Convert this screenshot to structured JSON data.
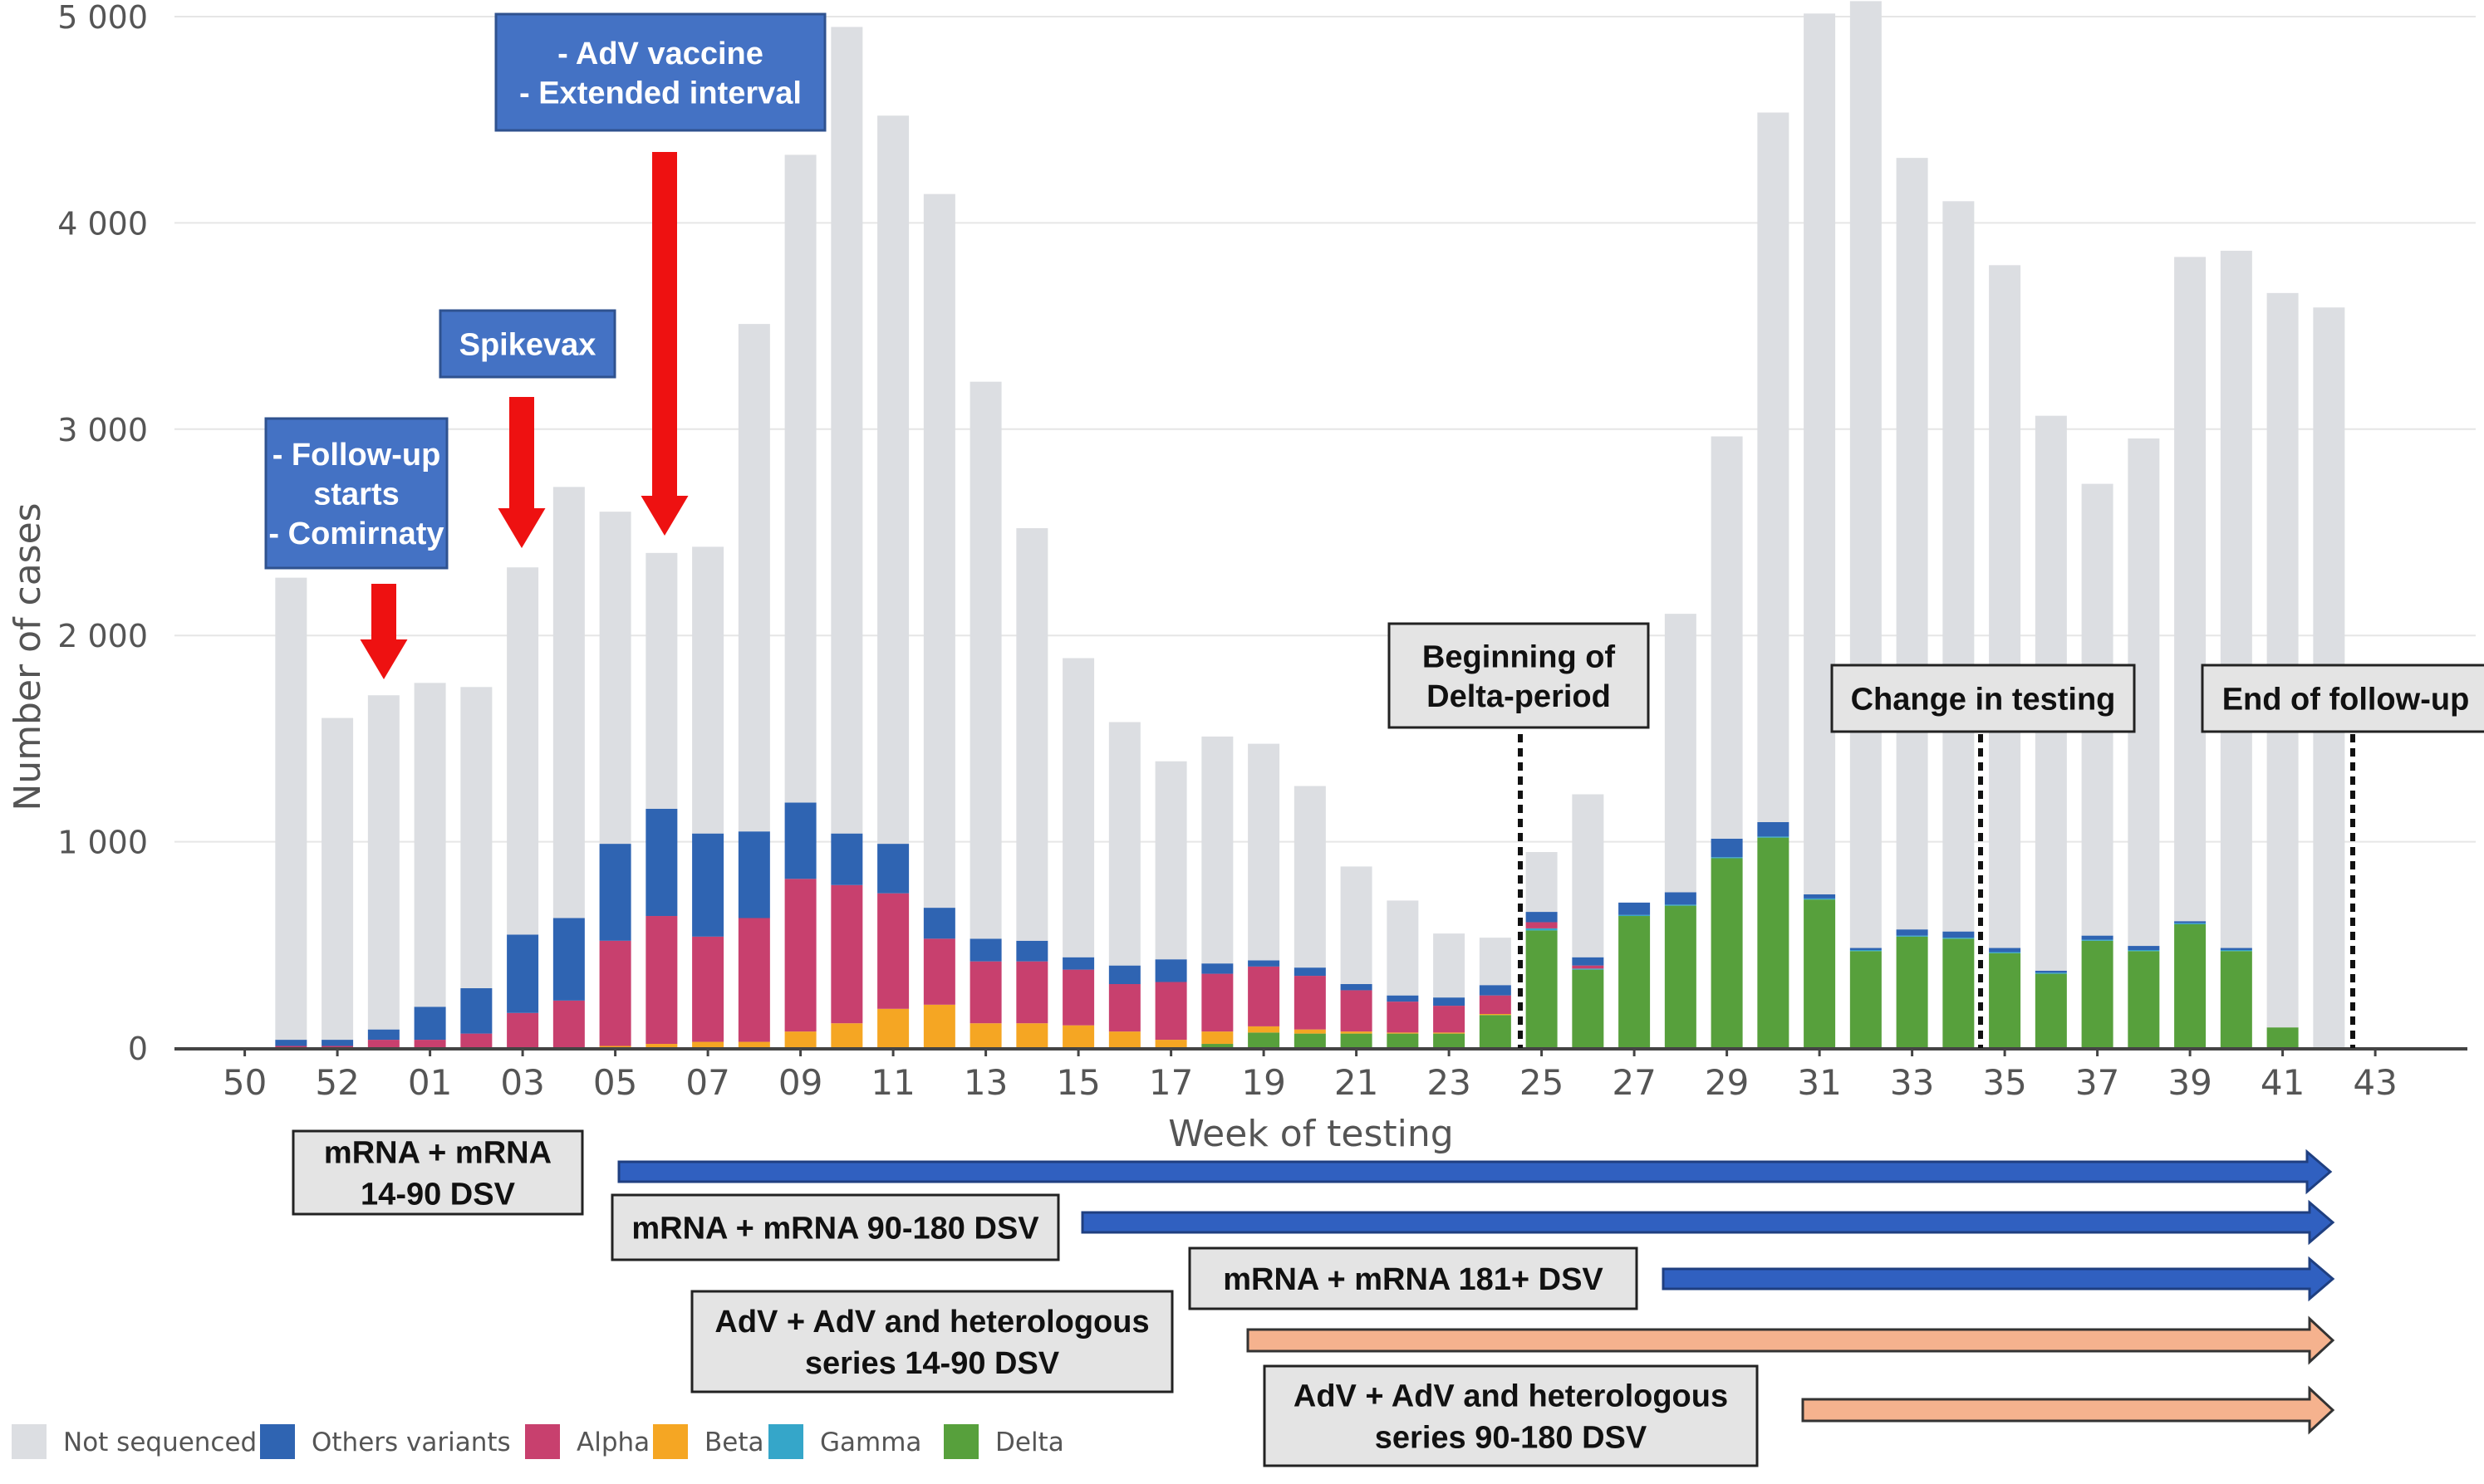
{
  "chart_data": {
    "type": "bar",
    "stacked": true,
    "ylabel": "Number of cases",
    "xlabel": "Week of testing",
    "ylim": [
      0,
      5000
    ],
    "yticks": [
      {
        "value": 0,
        "label": "0"
      },
      {
        "value": 1000,
        "label": "1 000"
      },
      {
        "value": 2000,
        "label": "2 000"
      },
      {
        "value": 3000,
        "label": "3 000"
      },
      {
        "value": 4000,
        "label": "4 000"
      },
      {
        "value": 5000,
        "label": "5 000"
      }
    ],
    "categories": [
      "50",
      "51",
      "52",
      "53",
      "01",
      "02",
      "03",
      "04",
      "05",
      "06",
      "07",
      "08",
      "09",
      "10",
      "11",
      "12",
      "13",
      "14",
      "15",
      "16",
      "17",
      "18",
      "19",
      "20",
      "21",
      "22",
      "23",
      "24",
      "25",
      "26",
      "27",
      "28",
      "29",
      "30",
      "31",
      "32",
      "33",
      "34",
      "35",
      "36",
      "37",
      "38",
      "39",
      "40",
      "41",
      "42",
      "43"
    ],
    "tick_labels": [
      "50",
      "52",
      "01",
      "03",
      "05",
      "07",
      "09",
      "11",
      "13",
      "15",
      "17",
      "19",
      "21",
      "23",
      "25",
      "27",
      "29",
      "31",
      "33",
      "35",
      "37",
      "39",
      "41",
      "43"
    ],
    "legend_position": "bottom-left",
    "grid": true,
    "series": [
      {
        "name": "Delta",
        "color": "#57a03c",
        "values": [
          0,
          0,
          0,
          0,
          0,
          0,
          0,
          0,
          0,
          0,
          0,
          0,
          0,
          0,
          0,
          0,
          0,
          0,
          0,
          0,
          0,
          20,
          75,
          70,
          70,
          70,
          70,
          160,
          570,
          380,
          640,
          690,
          920,
          1020,
          720,
          470,
          540,
          530,
          460,
          360,
          520,
          470,
          600,
          470,
          100,
          0,
          0
        ]
      },
      {
        "name": "Gamma",
        "color": "#35a6c9",
        "values": [
          0,
          0,
          0,
          0,
          0,
          0,
          0,
          0,
          0,
          0,
          0,
          0,
          0,
          0,
          0,
          0,
          0,
          0,
          0,
          0,
          0,
          0,
          0,
          0,
          0,
          0,
          0,
          0,
          10,
          5,
          5,
          5,
          5,
          5,
          5,
          5,
          5,
          5,
          5,
          5,
          5,
          5,
          5,
          5,
          0,
          0,
          0
        ]
      },
      {
        "name": "Beta",
        "color": "#f5a623",
        "values": [
          0,
          0,
          0,
          0,
          0,
          0,
          0,
          0,
          10,
          20,
          30,
          30,
          80,
          120,
          190,
          210,
          120,
          120,
          110,
          80,
          40,
          60,
          30,
          20,
          10,
          5,
          5,
          5,
          0,
          0,
          0,
          0,
          0,
          0,
          0,
          0,
          0,
          0,
          0,
          0,
          0,
          0,
          0,
          0,
          0,
          0,
          0
        ]
      },
      {
        "name": "Alpha",
        "color": "#c8406e",
        "values": [
          0,
          10,
          10,
          40,
          40,
          70,
          170,
          230,
          510,
          620,
          510,
          600,
          740,
          670,
          560,
          320,
          300,
          300,
          270,
          230,
          280,
          280,
          290,
          260,
          200,
          150,
          130,
          90,
          30,
          15,
          0,
          0,
          0,
          0,
          0,
          0,
          0,
          0,
          0,
          0,
          0,
          0,
          0,
          0,
          0,
          0,
          0
        ]
      },
      {
        "name": "Others variants",
        "color": "#2f64b2",
        "values": [
          0,
          30,
          30,
          50,
          160,
          220,
          380,
          400,
          470,
          520,
          500,
          420,
          370,
          250,
          240,
          150,
          110,
          100,
          60,
          90,
          110,
          50,
          30,
          40,
          30,
          30,
          40,
          50,
          50,
          40,
          60,
          60,
          90,
          70,
          20,
          10,
          30,
          30,
          20,
          10,
          20,
          20,
          10,
          10,
          0,
          0,
          0
        ]
      },
      {
        "name": "Not sequenced",
        "color": "#dcdee2",
        "values": [
          0,
          2240,
          1560,
          1620,
          1570,
          1460,
          1780,
          2090,
          1610,
          1240,
          1390,
          2460,
          3140,
          3910,
          3530,
          3460,
          2700,
          2000,
          1450,
          1180,
          960,
          1100,
          1050,
          880,
          570,
          460,
          310,
          230,
          290,
          790,
          0,
          1350,
          1950,
          3440,
          4270,
          4590,
          3740,
          3540,
          3310,
          2690,
          2190,
          2460,
          3220,
          3380,
          3560,
          3590,
          0
        ]
      }
    ],
    "annotations": {
      "followup": [
        "- Follow-up",
        "starts",
        "- Comirnaty"
      ],
      "spikevax": [
        "Spikevax"
      ],
      "adv": [
        "- AdV vaccine",
        "- Extended interval"
      ],
      "delta_period": [
        "Beginning of",
        "Delta-period"
      ],
      "change_testing": [
        "Change in testing"
      ],
      "end_followup": [
        "End of follow-up"
      ]
    },
    "periods": [
      {
        "label": [
          "mRNA + mRNA",
          "14-90 DSV"
        ],
        "color": "#3060c0"
      },
      {
        "label": [
          "mRNA + mRNA 90-180 DSV"
        ],
        "color": "#3060c0"
      },
      {
        "label": [
          "mRNA + mRNA 181+ DSV"
        ],
        "color": "#3060c0"
      },
      {
        "label": [
          "AdV + AdV and heterologous",
          "series 14-90 DSV"
        ],
        "color": "#f5b28e"
      },
      {
        "label": [
          "AdV + AdV and heterologous",
          "series 90-180 DSV"
        ],
        "color": "#f5b28e"
      }
    ]
  }
}
